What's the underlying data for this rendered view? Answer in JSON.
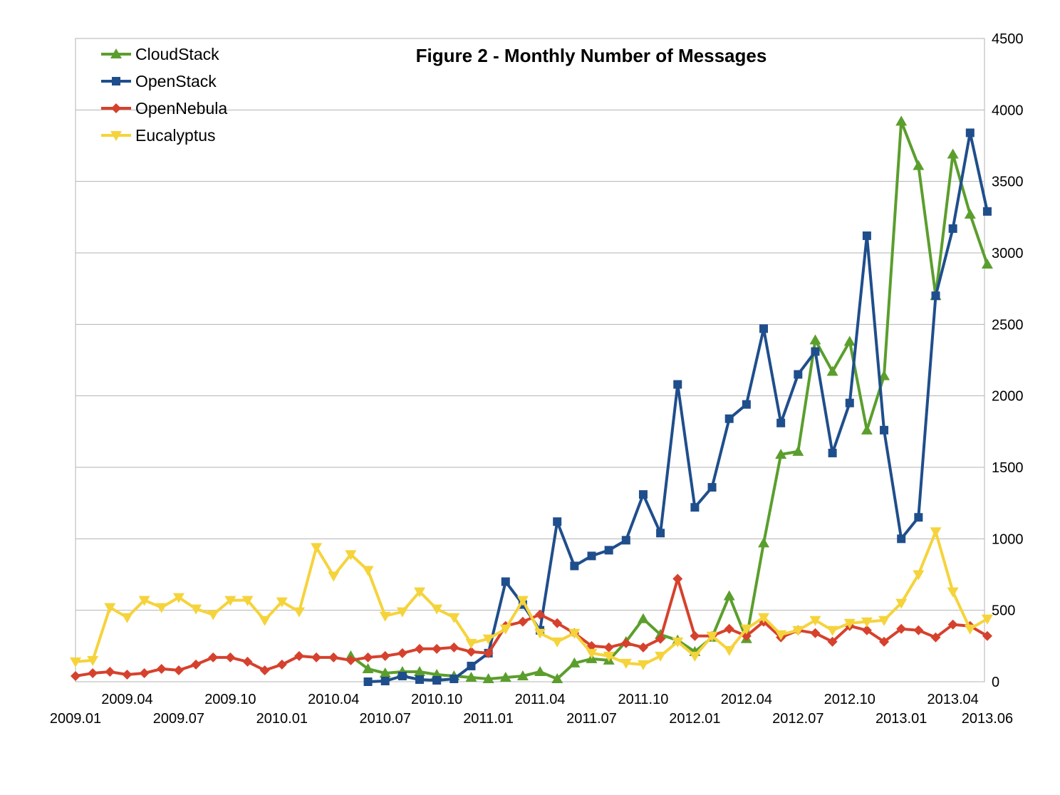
{
  "chart_data": {
    "type": "line",
    "title": "Figure 2 - Monthly Number of Messages",
    "xlabel": "",
    "ylabel": "",
    "x": [
      "2009.01",
      "2009.02",
      "2009.03",
      "2009.04",
      "2009.05",
      "2009.06",
      "2009.07",
      "2009.08",
      "2009.09",
      "2009.10",
      "2009.11",
      "2009.12",
      "2010.01",
      "2010.02",
      "2010.03",
      "2010.04",
      "2010.05",
      "2010.06",
      "2010.07",
      "2010.08",
      "2010.09",
      "2010.10",
      "2010.11",
      "2010.12",
      "2011.01",
      "2011.02",
      "2011.03",
      "2011.04",
      "2011.05",
      "2011.06",
      "2011.07",
      "2011.08",
      "2011.09",
      "2011.10",
      "2011.11",
      "2011.12",
      "2012.01",
      "2012.02",
      "2012.03",
      "2012.04",
      "2012.05",
      "2012.06",
      "2012.07",
      "2012.08",
      "2012.09",
      "2012.10",
      "2012.11",
      "2012.12",
      "2013.01",
      "2013.02",
      "2013.03",
      "2013.04",
      "2013.05",
      "2013.06"
    ],
    "x_tick_labels_upper": [
      "2009.04",
      "2009.10",
      "2010.04",
      "2010.10",
      "2011.04",
      "2011.10",
      "2012.04",
      "2012.10",
      "2013.04"
    ],
    "x_tick_labels_lower": [
      "2009.01",
      "2009.07",
      "2010.01",
      "2010.07",
      "2011.01",
      "2011.07",
      "2012.01",
      "2012.07",
      "2013.01",
      "2013.06"
    ],
    "y_axis_side": "right",
    "ylim": [
      0,
      4500
    ],
    "y_ticks": [
      0,
      500,
      1000,
      1500,
      2000,
      2500,
      3000,
      3500,
      4000,
      4500
    ],
    "grid": true,
    "legend_position": "top-left",
    "series": [
      {
        "name": "CloudStack",
        "color": "#5b9e2d",
        "marker": "triangle-up",
        "values": [
          null,
          null,
          null,
          null,
          null,
          null,
          null,
          null,
          null,
          null,
          null,
          null,
          null,
          null,
          null,
          null,
          180,
          90,
          60,
          70,
          70,
          50,
          40,
          30,
          20,
          30,
          40,
          70,
          20,
          130,
          160,
          150,
          280,
          440,
          330,
          290,
          210,
          310,
          600,
          300,
          970,
          1590,
          1610,
          2390,
          2170,
          2380,
          1760,
          2140,
          3920,
          3610,
          2700,
          3690,
          3270,
          2920
        ]
      },
      {
        "name": "OpenStack",
        "color": "#1f4e8c",
        "marker": "square",
        "values": [
          null,
          null,
          null,
          null,
          null,
          null,
          null,
          null,
          null,
          null,
          null,
          null,
          null,
          null,
          null,
          null,
          null,
          0,
          5,
          40,
          15,
          10,
          20,
          110,
          200,
          700,
          540,
          360,
          1120,
          810,
          880,
          920,
          990,
          1310,
          1040,
          2080,
          1220,
          1360,
          1840,
          1940,
          2470,
          1810,
          2150,
          2310,
          1600,
          1950,
          3120,
          1760,
          1000,
          1150,
          2700,
          3170,
          3840,
          3290
        ]
      },
      {
        "name": "OpenNebula",
        "color": "#d6412d",
        "marker": "diamond",
        "values": [
          40,
          60,
          70,
          50,
          60,
          90,
          80,
          120,
          170,
          170,
          140,
          80,
          120,
          180,
          170,
          170,
          150,
          170,
          180,
          200,
          230,
          230,
          240,
          210,
          200,
          390,
          420,
          470,
          410,
          340,
          250,
          240,
          270,
          240,
          300,
          720,
          320,
          320,
          370,
          320,
          420,
          310,
          360,
          340,
          280,
          390,
          360,
          280,
          370,
          360,
          310,
          400,
          390,
          320
        ]
      },
      {
        "name": "Eucalyptus",
        "color": "#f5d33b",
        "marker": "triangle-down",
        "values": [
          140,
          150,
          520,
          450,
          570,
          520,
          590,
          510,
          470,
          570,
          570,
          430,
          560,
          490,
          940,
          740,
          890,
          780,
          460,
          490,
          630,
          510,
          450,
          270,
          300,
          370,
          570,
          340,
          280,
          340,
          200,
          180,
          130,
          120,
          180,
          280,
          180,
          320,
          220,
          370,
          450,
          330,
          360,
          430,
          360,
          410,
          420,
          430,
          550,
          750,
          1050,
          630,
          370,
          440
        ]
      }
    ]
  }
}
